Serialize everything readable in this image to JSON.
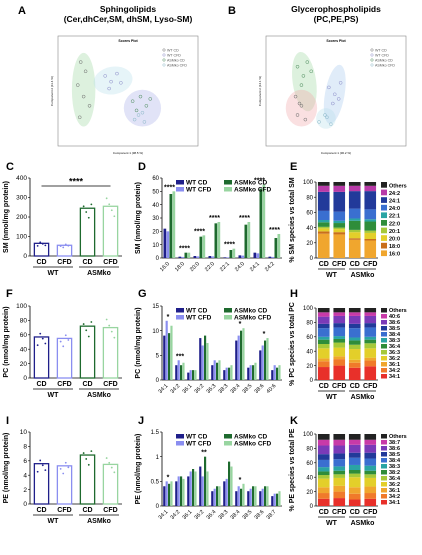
{
  "panels": {
    "A": {
      "letter": "A",
      "title_line1": "Sphingolipids",
      "title_line2": "(Cer,dhCer,SM, dhSM, Lyso-SM)",
      "plot_title": "Scores Plot",
      "xlabel": "Component 1 (38.5 %)",
      "ylabel": "Component 2 (11.4 %)"
    },
    "B": {
      "letter": "B",
      "title_line1": "Glycerophospholipids",
      "title_line2": "(PC,PE,PS)",
      "plot_title": "Scores Plot",
      "xlabel": "Component 1 (30.2 %)",
      "ylabel": "Component 2 (14.1 %)"
    },
    "C": {
      "letter": "C"
    },
    "D": {
      "letter": "D"
    },
    "E": {
      "letter": "E"
    },
    "F": {
      "letter": "F"
    },
    "G": {
      "letter": "G"
    },
    "H": {
      "letter": "H"
    },
    "I": {
      "letter": "I"
    },
    "J": {
      "letter": "J"
    },
    "K": {
      "letter": "K"
    }
  },
  "colors": {
    "WT_CD": "#1f1f8a",
    "WT_CFD": "#8a8ef0",
    "ASMko_CD": "#1e6a2e",
    "ASMko_CFD": "#98d5a0"
  },
  "chart_data": [
    {
      "id": "A",
      "type": "scatter",
      "title": "Scores Plot",
      "xlabel": "Component 1 (38.5 %)",
      "ylabel": "Component 2 (11.4 %)",
      "legend": [
        "WT CD",
        "WT CFD",
        "ASMko CD",
        "ASMko CFD"
      ],
      "legend_position": "top-right",
      "series": [
        {
          "name": "WT CD",
          "x": [
            -3.5,
            -3.0,
            -3.8,
            -3.2,
            -2.6,
            -3.6
          ],
          "y": [
            2.6,
            1.8,
            0.6,
            -0.4,
            -1.2,
            -2.2
          ]
        },
        {
          "name": "WT CFD",
          "x": [
            -1.0,
            -0.4,
            0.2,
            0.6,
            -0.6
          ],
          "y": [
            1.4,
            0.9,
            1.6,
            0.8,
            0.3
          ]
        },
        {
          "name": "ASMko CD",
          "x": [
            1.8,
            2.6,
            3.2,
            2.2,
            3.6
          ],
          "y": [
            -0.8,
            -0.4,
            -1.2,
            -1.6,
            -0.6
          ]
        },
        {
          "name": "ASMko CFD",
          "x": [
            2.4,
            3.0,
            2.0,
            2.8
          ],
          "y": [
            -2.0,
            -2.6,
            -2.4,
            -1.8
          ]
        }
      ]
    },
    {
      "id": "B",
      "type": "scatter",
      "title": "Scores Plot",
      "xlabel": "Component 1 (30.2 %)",
      "ylabel": "Component 2 (14.1 %)",
      "legend": [
        "WT CD",
        "WT CFD",
        "ASMko CD",
        "ASMko CFD"
      ],
      "legend_position": "top-right",
      "series": [
        {
          "name": "WT CD",
          "x": [
            -2.8,
            -2.2,
            -2.6,
            -1.8,
            -2.4
          ],
          "y": [
            -0.4,
            -1.2,
            -2.0,
            -2.4,
            -1.0
          ]
        },
        {
          "name": "WT CFD",
          "x": [
            0.6,
            1.2,
            1.8,
            1.0,
            1.6
          ],
          "y": [
            0.4,
            -0.2,
            0.8,
            -1.0,
            -0.6
          ]
        },
        {
          "name": "ASMko CD",
          "x": [
            -2.6,
            -2.0,
            -1.6,
            -2.2,
            -1.2
          ],
          "y": [
            2.2,
            1.4,
            2.6,
            0.6,
            1.8
          ]
        },
        {
          "name": "ASMko CFD",
          "x": [
            0.2,
            -0.4,
            0.8,
            0.4
          ],
          "y": [
            -2.0,
            -2.6,
            -2.8,
            -2.2
          ]
        }
      ]
    },
    {
      "id": "C",
      "type": "bar",
      "ylabel": "SM (nmol/mg protein)",
      "ylim": [
        0,
        400
      ],
      "yticks": [
        0,
        100,
        200,
        300,
        400
      ],
      "categories": [
        "CD",
        "CFD",
        "CD",
        "CFD"
      ],
      "groups": [
        "WT",
        "ASMko"
      ],
      "values": [
        65,
        55,
        245,
        255
      ],
      "annotation": "****"
    },
    {
      "id": "D",
      "type": "bar",
      "ylabel": "SM (nmol/mg protein)",
      "ylim": [
        0,
        60
      ],
      "yticks": [
        0,
        10,
        20,
        30,
        40,
        50,
        60
      ],
      "categories": [
        "16:0",
        "18:0",
        "20:0",
        "22:0",
        "22:1",
        "24:0",
        "24:1",
        "24:2"
      ],
      "legend_position": "top",
      "series": [
        {
          "name": "WT CD",
          "values": [
            22,
            1,
            1.5,
            1.5,
            0.5,
            2,
            4,
            1
          ]
        },
        {
          "name": "WT CFD",
          "values": [
            20,
            0.8,
            1.2,
            1.2,
            0.5,
            1.8,
            3.5,
            0.8
          ]
        },
        {
          "name": "ASMko CD",
          "values": [
            48,
            4,
            16,
            26,
            6,
            25,
            52,
            15
          ]
        },
        {
          "name": "ASMko CFD",
          "values": [
            50,
            4,
            17,
            27,
            7,
            27,
            55,
            18
          ]
        }
      ],
      "annotations": [
        "****",
        "****",
        "****",
        "****",
        "****",
        "****",
        "****",
        "****"
      ]
    },
    {
      "id": "E",
      "type": "bar",
      "stacked": true,
      "ylabel": "% SM species vs total SM",
      "ylim": [
        0,
        100
      ],
      "yticks": [
        0,
        20,
        40,
        60,
        80,
        100
      ],
      "categories": [
        "CD",
        "CFD",
        "CD",
        "CFD"
      ],
      "groups": [
        "WT",
        "ASMko"
      ],
      "species": [
        "16:0",
        "18:0",
        "20:0",
        "20:1",
        "22:0",
        "22:1",
        "24:0",
        "24:1",
        "24:2",
        "Others"
      ],
      "species_colors": [
        "#f0a62e",
        "#c96f1c",
        "#e3cf2a",
        "#a6c93a",
        "#2f8d3a",
        "#2aa4a4",
        "#3a6fd0",
        "#223a9a",
        "#b83aa8",
        "#222222"
      ],
      "values": [
        [
          32,
          3,
          4,
          2,
          6,
          3,
          12,
          25,
          8,
          5
        ],
        [
          31,
          3,
          4,
          2,
          6,
          3,
          12,
          26,
          8,
          5
        ],
        [
          24,
          2,
          8,
          3,
          12,
          3,
          13,
          23,
          7,
          5
        ],
        [
          23,
          2,
          8,
          3,
          12,
          3,
          13,
          24,
          7,
          5
        ]
      ]
    },
    {
      "id": "F",
      "type": "bar",
      "ylabel": "PC (nmol/mg protein)",
      "ylim": [
        0,
        100
      ],
      "yticks": [
        0,
        20,
        40,
        60,
        80,
        100
      ],
      "categories": [
        "CD",
        "CFD",
        "CD",
        "CFD"
      ],
      "groups": [
        "WT",
        "ASMko"
      ],
      "values": [
        57,
        55,
        72,
        70
      ]
    },
    {
      "id": "G",
      "type": "bar",
      "ylabel": "PC (nmol/mg protein)",
      "ylim": [
        0,
        15
      ],
      "yticks": [
        0,
        5,
        10,
        15
      ],
      "categories": [
        "34:1",
        "34:2",
        "36:1",
        "36:2",
        "36:3",
        "38:3",
        "38:4",
        "38:5",
        "38:6",
        "40:6"
      ],
      "legend_position": "top",
      "series": [
        {
          "name": "WT CD",
          "values": [
            9,
            3,
            1.5,
            8.5,
            3,
            2,
            8,
            2.5,
            6,
            2
          ]
        },
        {
          "name": "WT CFD",
          "values": [
            12,
            4,
            2,
            7,
            4,
            2.5,
            9,
            3,
            7,
            3
          ]
        },
        {
          "name": "ASMko CD",
          "values": [
            9.5,
            3,
            2,
            9,
            3.5,
            2.5,
            10,
            3,
            8,
            2.5
          ]
        },
        {
          "name": "ASMko CFD",
          "values": [
            11,
            3.5,
            2,
            7.5,
            4,
            3,
            10.5,
            3.5,
            8.5,
            3
          ]
        }
      ],
      "annotations": [
        "*",
        "***",
        "",
        "",
        "",
        "",
        "*",
        "",
        "*",
        ""
      ]
    },
    {
      "id": "H",
      "type": "bar",
      "stacked": true,
      "ylabel": "% PC species vs total PC",
      "ylim": [
        0,
        100
      ],
      "yticks": [
        0,
        20,
        40,
        60,
        80,
        100
      ],
      "categories": [
        "CD",
        "CFD",
        "CD",
        "CFD"
      ],
      "groups": [
        "WT",
        "ASMko"
      ],
      "species": [
        "34:1",
        "34:2",
        "36:1",
        "36:2",
        "36:3",
        "36:4",
        "38:3",
        "38:4",
        "38:5",
        "38:6",
        "40:6",
        "Others"
      ],
      "species_colors": [
        "#e8302a",
        "#f07a2a",
        "#f0a62e",
        "#e3cf2a",
        "#a6c93a",
        "#2f8d3a",
        "#2aa4a4",
        "#3a6fd0",
        "#223a9a",
        "#7a3ab8",
        "#c83aa8",
        "#222222"
      ],
      "values": [
        [
          18,
          8,
          4,
          14,
          6,
          6,
          4,
          12,
          6,
          10,
          6,
          6
        ],
        [
          20,
          9,
          4,
          12,
          7,
          5,
          4,
          12,
          6,
          10,
          5,
          6
        ],
        [
          17,
          7,
          4,
          15,
          6,
          6,
          4,
          13,
          6,
          11,
          5,
          6
        ],
        [
          19,
          8,
          4,
          13,
          7,
          5,
          4,
          13,
          6,
          10,
          5,
          6
        ]
      ]
    },
    {
      "id": "I",
      "type": "bar",
      "ylabel": "PE (nmol/mg protein)",
      "ylim": [
        0,
        10
      ],
      "yticks": [
        0,
        2,
        4,
        6,
        8,
        10
      ],
      "categories": [
        "CD",
        "CFD",
        "CD",
        "CFD"
      ],
      "groups": [
        "WT",
        "ASMko"
      ],
      "values": [
        5.6,
        5.3,
        6.8,
        5.5
      ]
    },
    {
      "id": "J",
      "type": "bar",
      "ylabel": "PE (nmol/mg protein)",
      "ylim": [
        0,
        1.5
      ],
      "yticks": [
        0,
        0.5,
        1.0,
        1.5
      ],
      "categories": [
        "34:1",
        "34:2",
        "36:1",
        "36:2",
        "36:4",
        "38:3",
        "38:4",
        "38:5",
        "38:6",
        "38:7"
      ],
      "legend_position": "top",
      "series": [
        {
          "name": "WT CD",
          "values": [
            0.4,
            0.5,
            0.6,
            0.8,
            0.3,
            0.5,
            0.3,
            0.3,
            0.3,
            0.2
          ]
        },
        {
          "name": "WT CFD",
          "values": [
            0.5,
            0.6,
            0.7,
            0.6,
            0.35,
            0.55,
            0.4,
            0.35,
            0.35,
            0.25
          ]
        },
        {
          "name": "ASMko CD",
          "values": [
            0.45,
            0.6,
            0.75,
            1.0,
            0.4,
            0.9,
            0.35,
            0.4,
            0.4,
            0.25
          ]
        },
        {
          "name": "ASMko CFD",
          "values": [
            0.5,
            0.55,
            0.7,
            0.7,
            0.4,
            0.8,
            0.45,
            0.4,
            0.4,
            0.3
          ]
        }
      ],
      "annotations": [
        "*",
        "",
        "",
        "**",
        "",
        "",
        "*",
        "",
        "",
        ""
      ]
    },
    {
      "id": "K",
      "type": "bar",
      "stacked": true,
      "ylabel": "% PE species vs total PE",
      "ylim": [
        0,
        100
      ],
      "yticks": [
        0,
        20,
        40,
        60,
        80,
        100
      ],
      "categories": [
        "CD",
        "CFD",
        "CD",
        "CFD"
      ],
      "groups": [
        "WT",
        "ASMko"
      ],
      "species": [
        "34:1",
        "34:2",
        "36:1",
        "36:2",
        "36:4",
        "38:2",
        "38:3",
        "38:4",
        "38:5",
        "38:6",
        "38:7",
        "Others"
      ],
      "species_colors": [
        "#e8302a",
        "#f07a2a",
        "#f0a62e",
        "#e3cf2a",
        "#a6c93a",
        "#2f8d3a",
        "#2aa4a4",
        "#3a6fd0",
        "#223a9a",
        "#7a3ab8",
        "#c83aa8",
        "#222222"
      ],
      "values": [
        [
          10,
          8,
          8,
          12,
          5,
          5,
          6,
          10,
          8,
          12,
          8,
          8
        ],
        [
          11,
          9,
          8,
          11,
          5,
          5,
          6,
          10,
          8,
          11,
          8,
          8
        ],
        [
          9,
          8,
          9,
          14,
          5,
          5,
          7,
          10,
          7,
          11,
          7,
          8
        ],
        [
          10,
          8,
          9,
          12,
          5,
          5,
          7,
          10,
          8,
          11,
          7,
          8
        ]
      ]
    }
  ]
}
